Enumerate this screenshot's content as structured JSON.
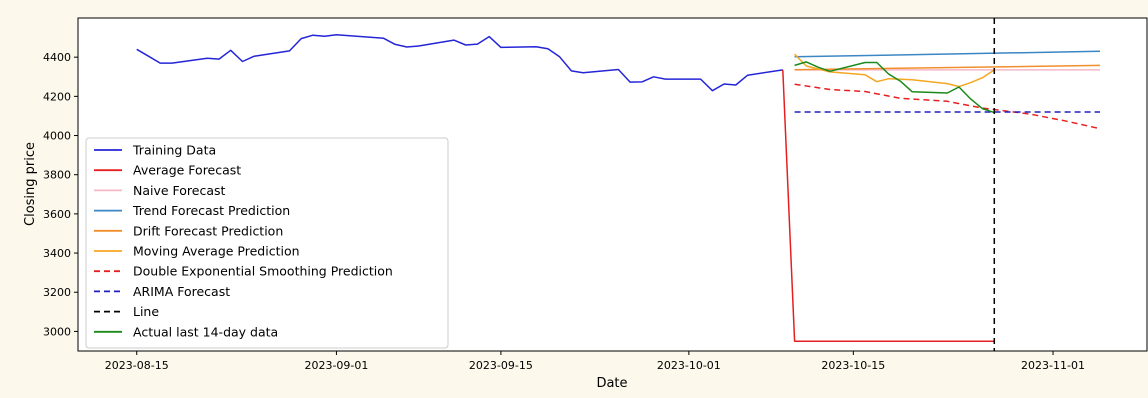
{
  "chart_data": {
    "type": "line",
    "title": "",
    "xlabel": "Date",
    "ylabel": "Closing price",
    "x_tick_labels": [
      "2023-08-15",
      "2023-09-01",
      "2023-09-15",
      "2023-10-01",
      "2023-10-15",
      "2023-11-01"
    ],
    "y_tick_labels": [
      "3000",
      "3200",
      "3400",
      "3600",
      "3800",
      "4000",
      "4200",
      "4400"
    ],
    "xlim": [
      "2023-08-10",
      "2023-11-09"
    ],
    "ylim": [
      2900,
      4600
    ],
    "grid": false,
    "legend_position": "lower-left",
    "vertical_line": {
      "name": "Line",
      "x": "2023-10-27",
      "color": "#000000",
      "dash": true
    },
    "series": [
      {
        "name": "Training Data",
        "color": "#2525d8",
        "dash": false,
        "points": [
          [
            "2023-08-15",
            4440
          ],
          [
            "2023-08-16",
            4405
          ],
          [
            "2023-08-17",
            4370
          ],
          [
            "2023-08-18",
            4370
          ],
          [
            "2023-08-21",
            4395
          ],
          [
            "2023-08-22",
            4390
          ],
          [
            "2023-08-23",
            4435
          ],
          [
            "2023-08-24",
            4378
          ],
          [
            "2023-08-25",
            4405
          ],
          [
            "2023-08-28",
            4432
          ],
          [
            "2023-08-29",
            4495
          ],
          [
            "2023-08-30",
            4512
          ],
          [
            "2023-08-31",
            4507
          ],
          [
            "2023-09-01",
            4515
          ],
          [
            "2023-09-05",
            4497
          ],
          [
            "2023-09-06",
            4465
          ],
          [
            "2023-09-07",
            4452
          ],
          [
            "2023-09-08",
            4457
          ],
          [
            "2023-09-11",
            4487
          ],
          [
            "2023-09-12",
            4462
          ],
          [
            "2023-09-13",
            4467
          ],
          [
            "2023-09-14",
            4505
          ],
          [
            "2023-09-15",
            4450
          ],
          [
            "2023-09-18",
            4453
          ],
          [
            "2023-09-19",
            4443
          ],
          [
            "2023-09-20",
            4402
          ],
          [
            "2023-09-21",
            4330
          ],
          [
            "2023-09-22",
            4320
          ],
          [
            "2023-09-25",
            4337
          ],
          [
            "2023-09-26",
            4273
          ],
          [
            "2023-09-27",
            4274
          ],
          [
            "2023-09-28",
            4300
          ],
          [
            "2023-09-29",
            4288
          ],
          [
            "2023-10-02",
            4288
          ],
          [
            "2023-10-03",
            4229
          ],
          [
            "2023-10-04",
            4263
          ],
          [
            "2023-10-05",
            4258
          ],
          [
            "2023-10-06",
            4308
          ],
          [
            "2023-10-09",
            4335
          ]
        ]
      },
      {
        "name": "Average Forecast",
        "color": "#e62020",
        "dash": false,
        "points": [
          [
            "2023-10-09",
            4335
          ],
          [
            "2023-10-10",
            2950
          ],
          [
            "2023-10-27",
            2950
          ]
        ]
      },
      {
        "name": "Naive Forecast",
        "color": "#f4b8c6",
        "dash": false,
        "points": [
          [
            "2023-10-10",
            4335
          ],
          [
            "2023-11-05",
            4335
          ]
        ]
      },
      {
        "name": "Trend Forecast Prediction",
        "color": "#3b86c4",
        "dash": false,
        "points": [
          [
            "2023-10-10",
            4402
          ],
          [
            "2023-11-05",
            4430
          ]
        ]
      },
      {
        "name": "Drift Forecast Prediction",
        "color": "#f28e2b",
        "dash": false,
        "points": [
          [
            "2023-10-10",
            4336
          ],
          [
            "2023-11-05",
            4358
          ]
        ]
      },
      {
        "name": "Moving Average Prediction",
        "color": "#f5a623",
        "dash": false,
        "points": [
          [
            "2023-10-10",
            4415
          ],
          [
            "2023-10-11",
            4355
          ],
          [
            "2023-10-13",
            4325
          ],
          [
            "2023-10-16",
            4310
          ],
          [
            "2023-10-17",
            4275
          ],
          [
            "2023-10-18",
            4290
          ],
          [
            "2023-10-20",
            4285
          ],
          [
            "2023-10-23",
            4265
          ],
          [
            "2023-10-24",
            4250
          ],
          [
            "2023-10-25",
            4270
          ],
          [
            "2023-10-26",
            4295
          ],
          [
            "2023-10-27",
            4335
          ]
        ]
      },
      {
        "name": "Double Exponential Smoothing Prediction",
        "color": "#e62020",
        "dash": true,
        "points": [
          [
            "2023-10-10",
            4262
          ],
          [
            "2023-10-13",
            4235
          ],
          [
            "2023-10-16",
            4225
          ],
          [
            "2023-10-19",
            4190
          ],
          [
            "2023-10-23",
            4175
          ],
          [
            "2023-10-26",
            4140
          ],
          [
            "2023-10-30",
            4110
          ],
          [
            "2023-11-02",
            4075
          ],
          [
            "2023-11-05",
            4035
          ]
        ]
      },
      {
        "name": "ARIMA Forecast",
        "color": "#1f1fbf",
        "dash": true,
        "points": [
          [
            "2023-10-10",
            4120
          ],
          [
            "2023-11-05",
            4120
          ]
        ]
      },
      {
        "name": "Actual last 14-day data",
        "color": "#1a8a1a",
        "dash": false,
        "points": [
          [
            "2023-10-10",
            4358
          ],
          [
            "2023-10-11",
            4376
          ],
          [
            "2023-10-12",
            4349
          ],
          [
            "2023-10-13",
            4328
          ],
          [
            "2023-10-16",
            4373
          ],
          [
            "2023-10-17",
            4373
          ],
          [
            "2023-10-18",
            4314
          ],
          [
            "2023-10-19",
            4278
          ],
          [
            "2023-10-20",
            4224
          ],
          [
            "2023-10-23",
            4217
          ],
          [
            "2023-10-24",
            4248
          ],
          [
            "2023-10-25",
            4186
          ],
          [
            "2023-10-26",
            4137
          ],
          [
            "2023-10-27",
            4117
          ]
        ]
      }
    ]
  }
}
